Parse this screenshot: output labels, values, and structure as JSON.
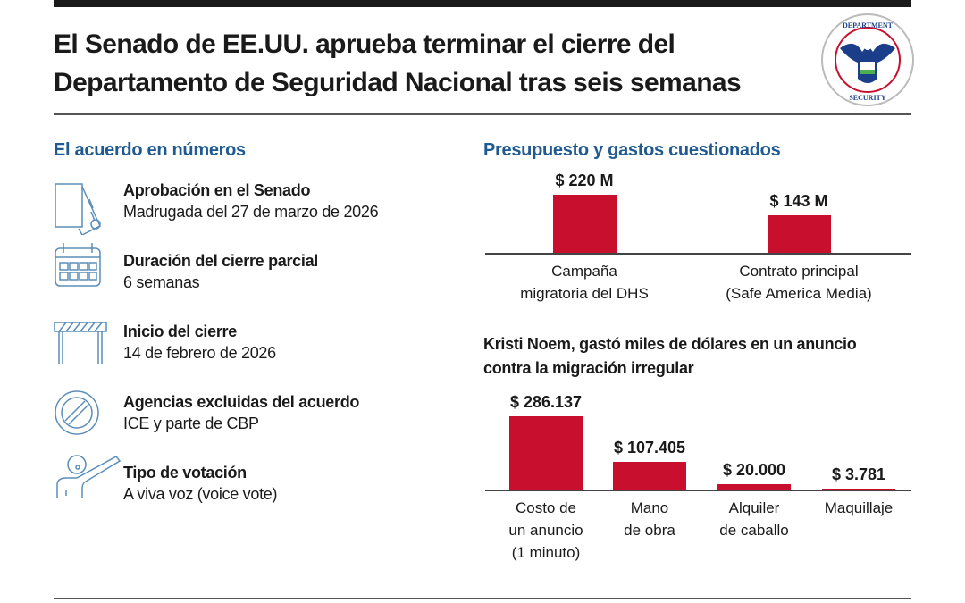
{
  "title": "El Senado de EE.UU. aprueba terminar el cierre del Departamento de Seguridad Nacional tras seis semanas",
  "logo": {
    "name": "dhs-seal",
    "text": "U.S. DEPARTMENT OF HOMELAND SECURITY"
  },
  "left_section": {
    "heading": "El acuerdo en números",
    "items": [
      {
        "icon": "document-certificate-icon",
        "label": "Aprobación en el Senado",
        "value": "Madrugada del 27 de marzo de 2026"
      },
      {
        "icon": "calendar-icon",
        "label": "Duración del cierre parcial",
        "value": "6 semanas"
      },
      {
        "icon": "barrier-icon",
        "label": "Inicio del cierre",
        "value": "14 de febrero de 2026"
      },
      {
        "icon": "prohibited-icon",
        "label": "Agencias excluidas del acuerdo",
        "value": "ICE y parte de CBP"
      },
      {
        "icon": "raised-hand-person-icon",
        "label": "Tipo de votación",
        "value": "A viva voz (voice vote)"
      }
    ]
  },
  "colors": {
    "accent": "#1f5a92",
    "bar": "#c8102e",
    "icon": "#5b8db8"
  },
  "chart_data": [
    {
      "type": "bar",
      "title": "Presupuesto y gastos cuestionados",
      "categories": [
        "Campaña migratoria del DHS",
        "Contrato principal (Safe America Media)"
      ],
      "category_lines": [
        [
          "Campaña",
          "migratoria del DHS"
        ],
        [
          "Contrato principal",
          "(Safe America Media)"
        ]
      ],
      "values": [
        220,
        143
      ],
      "unit": "millones USD",
      "data_labels": [
        "$ 220 M",
        "$ 143 M"
      ]
    },
    {
      "type": "bar",
      "title": "Kristi Noem, gastó miles de dólares en un anuncio contra la migración irregular",
      "categories": [
        "Costo de un anuncio (1 minuto)",
        "Mano de obra",
        "Alquiler de caballo",
        "Maquillaje"
      ],
      "category_lines": [
        [
          "Costo de",
          "un anuncio",
          "(1 minuto)"
        ],
        [
          "Mano",
          "de obra"
        ],
        [
          "Alquiler",
          "de caballo"
        ],
        [
          "Maquillaje"
        ]
      ],
      "values": [
        286137,
        107405,
        20000,
        3781
      ],
      "data_labels": [
        "$ 286.137",
        "$ 107.405",
        "$ 20.000",
        "$ 3.781"
      ]
    }
  ]
}
